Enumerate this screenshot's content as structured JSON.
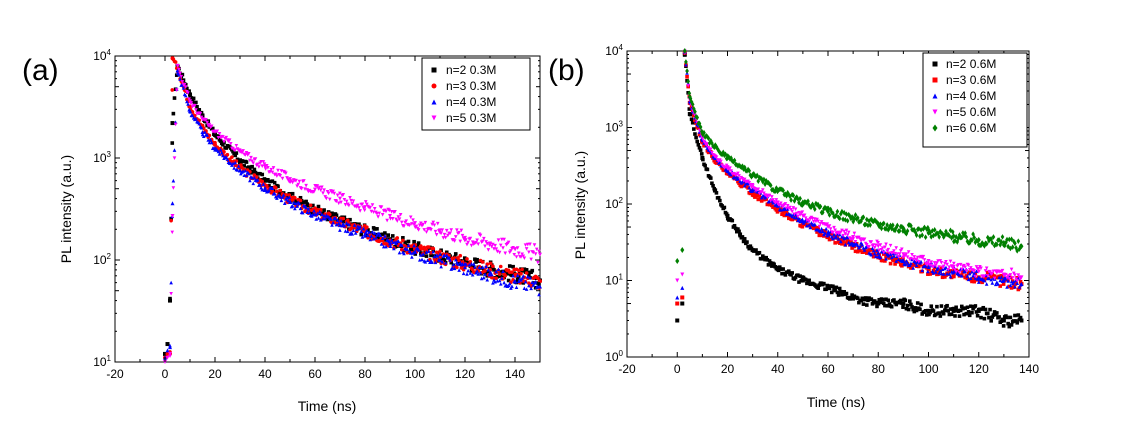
{
  "figure": {
    "panels": [
      {
        "label": "(a)"
      },
      {
        "label": "(b)"
      }
    ]
  },
  "chart_data": [
    {
      "type": "scatter",
      "panel": "(a)",
      "xlabel": "Time (ns)",
      "ylabel": "PL intensity (a.u.)",
      "xlim": [
        -20,
        150
      ],
      "ylim": [
        10,
        10000
      ],
      "yscale": "log",
      "xticks": [
        -20,
        0,
        20,
        40,
        60,
        80,
        100,
        120,
        140
      ],
      "yticks": [
        {
          "value": 10,
          "base": "10",
          "exp": "1"
        },
        {
          "value": 100,
          "base": "10",
          "exp": "2"
        },
        {
          "value": 1000,
          "base": "10",
          "exp": "3"
        },
        {
          "value": 10000,
          "base": "10",
          "exp": "4"
        }
      ],
      "legend_position": "top-right",
      "series": [
        {
          "name": "n=2 0.3M",
          "color": "#000000",
          "marker": "square",
          "x": [
            0,
            1,
            2,
            3,
            5,
            10,
            15,
            20,
            30,
            40,
            50,
            60,
            70,
            80,
            90,
            100,
            110,
            120,
            130,
            140,
            150
          ],
          "y": [
            12,
            15,
            40,
            2200,
            8000,
            4200,
            2600,
            1700,
            950,
            600,
            420,
            310,
            245,
            195,
            160,
            130,
            110,
            95,
            82,
            72,
            63
          ]
        },
        {
          "name": "n=3 0.3M",
          "color": "#ff0000",
          "marker": "circle",
          "x": [
            0,
            1,
            2,
            3,
            5,
            10,
            15,
            20,
            30,
            40,
            50,
            60,
            70,
            80,
            90,
            100,
            110,
            120,
            130,
            140,
            150
          ],
          "y": [
            11,
            12,
            12,
            9500,
            7600,
            3200,
            2000,
            1350,
            800,
            540,
            390,
            295,
            235,
            190,
            155,
            128,
            108,
            92,
            80,
            70,
            62
          ]
        },
        {
          "name": "n=4 0.3M",
          "color": "#0000ff",
          "marker": "triangle",
          "x": [
            0,
            1,
            2,
            3,
            5,
            10,
            15,
            20,
            30,
            40,
            50,
            60,
            70,
            80,
            90,
            100,
            110,
            120,
            130,
            140,
            150
          ],
          "y": [
            11,
            13,
            14,
            360,
            7200,
            2900,
            1800,
            1250,
            760,
            510,
            370,
            280,
            220,
            180,
            145,
            120,
            100,
            85,
            72,
            62,
            55
          ]
        },
        {
          "name": "n=5 0.3M",
          "color": "#ff00ff",
          "marker": "triangle-down",
          "x": [
            0,
            1,
            2,
            3,
            5,
            10,
            15,
            20,
            30,
            40,
            50,
            60,
            70,
            80,
            90,
            100,
            110,
            120,
            130,
            140,
            150
          ],
          "y": [
            10,
            11,
            12,
            270,
            8000,
            3600,
            2400,
            1800,
            1150,
            820,
            620,
            490,
            400,
            330,
            270,
            230,
            195,
            165,
            145,
            128,
            113
          ]
        }
      ]
    },
    {
      "type": "scatter",
      "panel": "(b)",
      "xlabel": "Time (ns)",
      "ylabel": "PL intensity (a.u.)",
      "xlim": [
        -20,
        140
      ],
      "ylim": [
        1,
        10000
      ],
      "yscale": "log",
      "xticks": [
        -20,
        0,
        20,
        40,
        60,
        80,
        100,
        120,
        140
      ],
      "yticks": [
        {
          "value": 1,
          "base": "10",
          "exp": "0"
        },
        {
          "value": 10,
          "base": "10",
          "exp": "1"
        },
        {
          "value": 100,
          "base": "10",
          "exp": "2"
        },
        {
          "value": 1000,
          "base": "10",
          "exp": "3"
        },
        {
          "value": 10000,
          "base": "10",
          "exp": "4"
        }
      ],
      "legend_position": "top-right",
      "series": [
        {
          "name": "n=2 0.6M",
          "color": "#000000",
          "marker": "square",
          "x": [
            0,
            2,
            3,
            5,
            10,
            15,
            20,
            25,
            30,
            40,
            50,
            60,
            70,
            80,
            90,
            100,
            110,
            120,
            130,
            137
          ],
          "y": [
            3,
            5,
            9000,
            1500,
            400,
            150,
            70,
            40,
            25,
            14,
            10,
            8,
            6,
            5,
            5,
            4,
            4,
            4,
            3,
            3
          ]
        },
        {
          "name": "n=3 0.6M",
          "color": "#ff0000",
          "marker": "square",
          "x": [
            0,
            2,
            3,
            5,
            10,
            15,
            20,
            30,
            40,
            50,
            60,
            70,
            80,
            90,
            100,
            110,
            120,
            130,
            137
          ],
          "y": [
            5,
            6,
            9500,
            2100,
            650,
            380,
            250,
            140,
            85,
            55,
            38,
            28,
            21,
            17,
            14,
            12,
            11,
            10,
            9
          ]
        },
        {
          "name": "n=4 0.6M",
          "color": "#0000ff",
          "marker": "triangle",
          "x": [
            0,
            2,
            3,
            5,
            10,
            15,
            20,
            30,
            40,
            50,
            60,
            70,
            80,
            90,
            100,
            110,
            120,
            130,
            137
          ],
          "y": [
            6,
            8,
            9800,
            2200,
            700,
            400,
            270,
            155,
            95,
            60,
            42,
            30,
            23,
            18,
            15,
            13,
            11,
            10,
            9
          ]
        },
        {
          "name": "n=5 0.6M",
          "color": "#ff00ff",
          "marker": "triangle-down",
          "x": [
            0,
            2,
            3,
            5,
            10,
            15,
            20,
            30,
            40,
            50,
            60,
            70,
            80,
            90,
            100,
            110,
            120,
            130,
            137
          ],
          "y": [
            10,
            12,
            9800,
            2300,
            720,
            420,
            290,
            170,
            105,
            70,
            50,
            37,
            28,
            22,
            18,
            15,
            13,
            12,
            11
          ]
        },
        {
          "name": "n=6 0.6M",
          "color": "#008000",
          "marker": "diamond",
          "x": [
            0,
            2,
            3,
            5,
            10,
            15,
            20,
            30,
            40,
            50,
            60,
            70,
            80,
            90,
            100,
            110,
            120,
            130,
            137
          ],
          "y": [
            18,
            25,
            10000,
            2500,
            850,
            560,
            400,
            240,
            150,
            105,
            80,
            65,
            55,
            48,
            42,
            38,
            34,
            31,
            28
          ]
        }
      ]
    }
  ]
}
